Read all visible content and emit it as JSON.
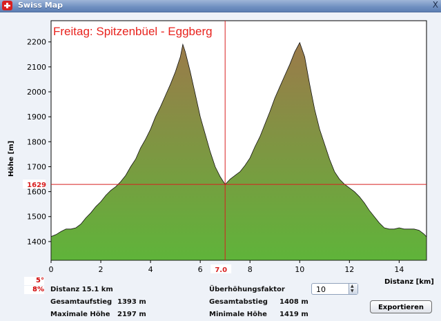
{
  "window": {
    "title": "Swiss Map",
    "close_label": "X",
    "icon": "swiss-map-app-icon"
  },
  "chart_data": {
    "type": "area",
    "title": "Freitag: Spitzenbüel - Eggberg",
    "xlabel": "Distanz [km]",
    "ylabel": "Höhe [m]",
    "xlim": [
      0,
      15.1
    ],
    "ylim": [
      1325,
      2285
    ],
    "x_ticks": [
      "0",
      "2",
      "4",
      "6",
      "8",
      "10",
      "12",
      "14"
    ],
    "y_ticks": [
      "1400",
      "1500",
      "1600",
      "1700",
      "1800",
      "1900",
      "2000",
      "2100",
      "2200"
    ],
    "cursor": {
      "x": 7.0,
      "y": 1629,
      "x_label": "7.0",
      "y_label": "1629"
    },
    "x": [
      0,
      0.2,
      0.4,
      0.6,
      0.8,
      1.0,
      1.2,
      1.4,
      1.6,
      1.8,
      2.0,
      2.2,
      2.4,
      2.6,
      2.8,
      3.0,
      3.2,
      3.4,
      3.6,
      3.8,
      4.0,
      4.2,
      4.4,
      4.6,
      4.8,
      5.0,
      5.2,
      5.3,
      5.4,
      5.6,
      5.8,
      6.0,
      6.2,
      6.4,
      6.6,
      6.8,
      7.0,
      7.2,
      7.4,
      7.6,
      7.8,
      8.0,
      8.2,
      8.4,
      8.6,
      8.8,
      9.0,
      9.2,
      9.4,
      9.6,
      9.8,
      10.0,
      10.2,
      10.4,
      10.6,
      10.8,
      11.0,
      11.2,
      11.4,
      11.6,
      11.8,
      12.0,
      12.2,
      12.4,
      12.6,
      12.8,
      13.0,
      13.2,
      13.4,
      13.6,
      13.8,
      14.0,
      14.2,
      14.4,
      14.6,
      14.8,
      15.0,
      15.1
    ],
    "elevation": [
      1420,
      1428,
      1440,
      1450,
      1450,
      1455,
      1470,
      1495,
      1515,
      1540,
      1560,
      1585,
      1605,
      1620,
      1640,
      1665,
      1700,
      1730,
      1775,
      1810,
      1850,
      1900,
      1940,
      1985,
      2030,
      2080,
      2140,
      2190,
      2160,
      2080,
      1990,
      1900,
      1830,
      1760,
      1700,
      1660,
      1629,
      1650,
      1665,
      1680,
      1705,
      1735,
      1780,
      1820,
      1870,
      1920,
      1975,
      2020,
      2065,
      2110,
      2160,
      2197,
      2140,
      2030,
      1930,
      1850,
      1790,
      1730,
      1680,
      1650,
      1630,
      1615,
      1600,
      1580,
      1555,
      1525,
      1500,
      1475,
      1455,
      1450,
      1450,
      1455,
      1450,
      1450,
      1450,
      1445,
      1430,
      1419
    ],
    "colors": {
      "fill_top": "#9b7a4a",
      "fill_bottom": "#5fb43a",
      "cursor": "#d81e1e",
      "title": "#e8231e"
    }
  },
  "badges": {
    "slope_deg": "5°",
    "slope_pct": "8%"
  },
  "stats": {
    "distance": "Distanz 15.1 km",
    "ascent_label": "Gesamtaufstieg",
    "ascent_value": "1393 m",
    "max_label": "Maximale Höhe",
    "max_value": "2197 m",
    "factor_label": "Überhöhungsfaktor",
    "descent_label": "Gesamtabstieg",
    "descent_value": "1408 m",
    "min_label": "Minimale Höhe",
    "min_value": "1419 m"
  },
  "factor_select": {
    "value": "10"
  },
  "buttons": {
    "export": "Exportieren"
  }
}
